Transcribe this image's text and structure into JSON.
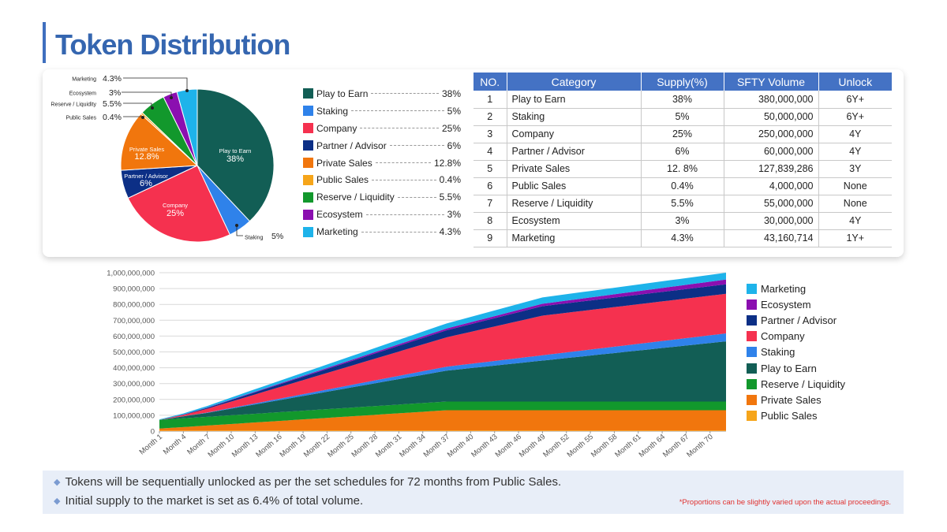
{
  "title": "Token Distribution",
  "colors": {
    "Play to Earn": "#125e55",
    "Staking": "#2f82ea",
    "Company": "#f5314f",
    "Partner / Advisor": "#0c2f86",
    "Private Sales": "#f1760d",
    "Public Sales": "#f6a51a",
    "Reserve / Liquidity": "#12982c",
    "Ecosystem": "#8b0fb0",
    "Marketing": "#1eb3ea"
  },
  "legend_top": [
    {
      "label": "Play to Earn",
      "value": "38%"
    },
    {
      "label": "Staking",
      "value": "5%"
    },
    {
      "label": "Company",
      "value": "25%"
    },
    {
      "label": "Partner / Advisor",
      "value": "6%"
    },
    {
      "label": "Private Sales",
      "value": "12.8%"
    },
    {
      "label": "Public Sales",
      "value": "0.4%"
    },
    {
      "label": "Reserve / Liquidity",
      "value": "5.5%"
    },
    {
      "label": "Ecosystem",
      "value": "3%"
    },
    {
      "label": "Marketing",
      "value": "4.3%"
    }
  ],
  "pie_callouts": {
    "marketing": {
      "label": "Marketing",
      "value": "4.3%"
    },
    "ecosystem": {
      "label": "Ecosystem",
      "value": "3%"
    },
    "reserve": {
      "label": "Reserve / Liquidity",
      "value": "5.5%"
    },
    "public": {
      "label": "Public Sales",
      "value": "0.4%"
    },
    "staking": {
      "label": "Staking",
      "value": "5%"
    }
  },
  "pie_inner": {
    "play": {
      "label": "Play to Earn",
      "value": "38%"
    },
    "private": {
      "label": "Private Sales",
      "value": "12.8%"
    },
    "partner": {
      "label": "Partner / Advisor",
      "value": "6%"
    },
    "company": {
      "label": "Company",
      "value": "25%"
    }
  },
  "table": {
    "headers": [
      "NO.",
      "Category",
      "Supply(%)",
      "SFTY Volume",
      "Unlock"
    ],
    "rows": [
      {
        "no": "1",
        "category": "Play to Earn",
        "supply": "38%",
        "volume": "380,000,000",
        "unlock": "6Y+"
      },
      {
        "no": "2",
        "category": "Staking",
        "supply": "5%",
        "volume": "50,000,000",
        "unlock": "6Y+"
      },
      {
        "no": "3",
        "category": "Company",
        "supply": "25%",
        "volume": "250,000,000",
        "unlock": "4Y"
      },
      {
        "no": "4",
        "category": "Partner / Advisor",
        "supply": "6%",
        "volume": "60,000,000",
        "unlock": "4Y"
      },
      {
        "no": "5",
        "category": "Private Sales",
        "supply": "12. 8%",
        "volume": "127,839,286",
        "unlock": "3Y"
      },
      {
        "no": "6",
        "category": "Public Sales",
        "supply": "0.4%",
        "volume": "4,000,000",
        "unlock": "None"
      },
      {
        "no": "7",
        "category": "Reserve / Liquidity",
        "supply": "5.5%",
        "volume": "55,000,000",
        "unlock": "None"
      },
      {
        "no": "8",
        "category": "Ecosystem",
        "supply": "3%",
        "volume": "30,000,000",
        "unlock": "4Y"
      },
      {
        "no": "9",
        "category": "Marketing",
        "supply": "4.3%",
        "volume": "43,160,714",
        "unlock": "1Y+"
      }
    ]
  },
  "area_legend": [
    "Marketing",
    "Ecosystem",
    "Partner / Advisor",
    "Company",
    "Staking",
    "Play to Earn",
    "Reserve / Liquidity",
    "Private Sales",
    "Public Sales"
  ],
  "notes": {
    "line1": "Tokens will be sequentially unlocked as per the set schedules for 72 months from Public Sales.",
    "line2": "Initial supply to the market is set as 6.4% of total volume.",
    "footnote": "*Proportions can be slightly varied upon the actual proceedings."
  },
  "chart_data": [
    {
      "type": "pie",
      "title": "",
      "labels": [
        "Play to Earn",
        "Staking",
        "Company",
        "Partner / Advisor",
        "Private Sales",
        "Public Sales",
        "Reserve / Liquidity",
        "Ecosystem",
        "Marketing"
      ],
      "values": [
        38,
        5,
        25,
        6,
        12.8,
        0.4,
        5.5,
        3,
        4.3
      ],
      "start": "12 o'clock, clockwise"
    },
    {
      "type": "area",
      "stacked": true,
      "x_ticks": [
        "Month 1",
        "Month 4",
        "Month 7",
        "Month 10",
        "Month 13",
        "Month 16",
        "Month 19",
        "Month 22",
        "Month 25",
        "Month 28",
        "Month 31",
        "Month 34",
        "Month 37",
        "Month 40",
        "Month 43",
        "Month 46",
        "Month 49",
        "Month 52",
        "Month 55",
        "Month 58",
        "Month 61",
        "Month 64",
        "Month 67",
        "Month 70"
      ],
      "y_ticks": [
        "0",
        "100,000,000",
        "200,000,000",
        "300,000,000",
        "400,000,000",
        "500,000,000",
        "600,000,000",
        "700,000,000",
        "800,000,000",
        "900,000,000",
        "1,000,000,000"
      ],
      "ylim": [
        0,
        1000000000
      ],
      "month_range": [
        1,
        72
      ],
      "series": [
        {
          "name": "Public Sales",
          "points": [
            [
              1,
              4000000
            ],
            [
              72,
              4000000
            ]
          ]
        },
        {
          "name": "Private Sales",
          "points": [
            [
              1,
              12000000
            ],
            [
              37,
              127839286
            ],
            [
              72,
              127839286
            ]
          ]
        },
        {
          "name": "Reserve / Liquidity",
          "points": [
            [
              1,
              55000000
            ],
            [
              72,
              55000000
            ]
          ]
        },
        {
          "name": "Play to Earn",
          "points": [
            [
              1,
              0
            ],
            [
              7,
              25000000
            ],
            [
              37,
              195000000
            ],
            [
              72,
              380000000
            ]
          ]
        },
        {
          "name": "Staking",
          "points": [
            [
              1,
              0
            ],
            [
              7,
              2000000
            ],
            [
              37,
              25000000
            ],
            [
              72,
              50000000
            ]
          ]
        },
        {
          "name": "Company",
          "points": [
            [
              1,
              0
            ],
            [
              4,
              8000000
            ],
            [
              49,
              250000000
            ],
            [
              72,
              250000000
            ]
          ]
        },
        {
          "name": "Partner / Advisor",
          "points": [
            [
              1,
              0
            ],
            [
              4,
              2000000
            ],
            [
              49,
              60000000
            ],
            [
              72,
              60000000
            ]
          ]
        },
        {
          "name": "Ecosystem",
          "points": [
            [
              1,
              0
            ],
            [
              4,
              1000000
            ],
            [
              49,
              15000000
            ],
            [
              72,
              30000000
            ]
          ]
        },
        {
          "name": "Marketing",
          "points": [
            [
              1,
              3000000
            ],
            [
              12,
              15000000
            ],
            [
              49,
              40000000
            ],
            [
              72,
              43160714
            ]
          ]
        }
      ]
    }
  ]
}
